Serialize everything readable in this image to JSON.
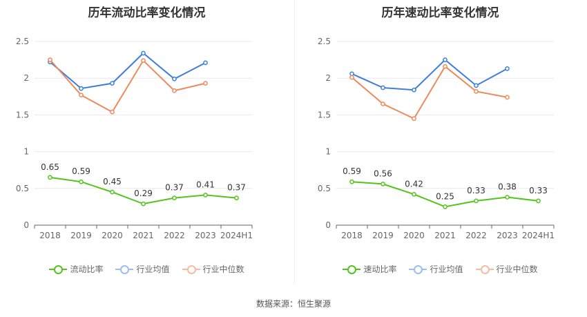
{
  "chart_data": [
    {
      "type": "line",
      "title": "历年流动比率变化情况",
      "categories": [
        "2018",
        "2019",
        "2020",
        "2021",
        "2022",
        "2023",
        "2024H1"
      ],
      "ylim": [
        0,
        2.5
      ],
      "yticks": [
        "0",
        "0.5",
        "1",
        "1.5",
        "2",
        "2.5"
      ],
      "grid": true,
      "legend_position": "bottom",
      "series": [
        {
          "name": "流动比率",
          "color": "#52c41a",
          "values": [
            0.65,
            0.59,
            0.45,
            0.29,
            0.37,
            0.41,
            0.37
          ],
          "labels": [
            "0.65",
            "0.59",
            "0.45",
            "0.29",
            "0.37",
            "0.41",
            "0.37"
          ]
        },
        {
          "name": "行业均值",
          "color": "#3b7ddd",
          "values": [
            2.22,
            1.86,
            1.93,
            2.34,
            1.99,
            2.21,
            null
          ]
        },
        {
          "name": "行业中位数",
          "color": "#f0885a",
          "values": [
            2.25,
            1.77,
            1.54,
            2.24,
            1.83,
            1.93,
            null
          ]
        }
      ]
    },
    {
      "type": "line",
      "title": "历年速动比率变化情况",
      "categories": [
        "2018",
        "2019",
        "2020",
        "2021",
        "2022",
        "2023",
        "2024H1"
      ],
      "ylim": [
        0,
        2.5
      ],
      "yticks": [
        "0",
        "0.5",
        "1",
        "1.5",
        "2",
        "2.5"
      ],
      "grid": true,
      "legend_position": "bottom",
      "series": [
        {
          "name": "速动比率",
          "color": "#52c41a",
          "values": [
            0.59,
            0.56,
            0.42,
            0.25,
            0.33,
            0.38,
            0.33
          ],
          "labels": [
            "0.59",
            "0.56",
            "0.42",
            "0.25",
            "0.33",
            "0.38",
            "0.33"
          ]
        },
        {
          "name": "行业均值",
          "color": "#3b7ddd",
          "values": [
            2.06,
            1.87,
            1.84,
            2.25,
            1.9,
            2.13,
            null
          ]
        },
        {
          "name": "行业中位数",
          "color": "#f0885a",
          "values": [
            2.01,
            1.65,
            1.45,
            2.16,
            1.82,
            1.74,
            null
          ]
        }
      ]
    }
  ],
  "legend_colors": {
    "light_blue": "#9dbdf0",
    "light_orange": "#f7bba0"
  },
  "footer": {
    "source": "数据来源：恒生聚源"
  }
}
